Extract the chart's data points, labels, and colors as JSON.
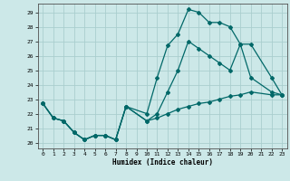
{
  "title": "",
  "xlabel": "Humidex (Indice chaleur)",
  "bg_color": "#cce8e8",
  "grid_color": "#aacece",
  "line_color": "#006868",
  "xlim": [
    -0.5,
    23.5
  ],
  "ylim": [
    19.6,
    29.6
  ],
  "xticks": [
    0,
    1,
    2,
    3,
    4,
    5,
    6,
    7,
    8,
    9,
    10,
    11,
    12,
    13,
    14,
    15,
    16,
    17,
    18,
    19,
    20,
    21,
    22,
    23
  ],
  "yticks": [
    20,
    21,
    22,
    23,
    24,
    25,
    26,
    27,
    28,
    29
  ],
  "line_top": {
    "x": [
      0,
      1,
      2,
      3,
      4,
      5,
      6,
      7,
      8,
      10,
      11,
      12,
      13,
      14,
      15,
      16,
      17,
      18,
      19,
      20,
      22,
      23
    ],
    "y": [
      22.7,
      21.7,
      21.5,
      20.7,
      20.2,
      20.5,
      20.5,
      20.2,
      22.5,
      22.0,
      24.5,
      26.7,
      27.5,
      29.2,
      29.0,
      28.3,
      28.3,
      28.0,
      26.8,
      24.5,
      23.5,
      23.3
    ]
  },
  "line_mid": {
    "x": [
      0,
      1,
      2,
      3,
      4,
      5,
      6,
      7,
      8,
      10,
      11,
      12,
      13,
      14,
      15,
      16,
      17,
      18,
      19,
      20,
      22,
      23
    ],
    "y": [
      22.7,
      21.7,
      21.5,
      20.7,
      20.2,
      20.5,
      20.5,
      20.2,
      22.5,
      21.5,
      22.0,
      23.5,
      25.0,
      27.0,
      26.5,
      26.0,
      25.5,
      25.0,
      26.8,
      26.8,
      24.5,
      23.3
    ]
  },
  "line_bot": {
    "x": [
      0,
      1,
      2,
      3,
      4,
      5,
      6,
      7,
      8,
      10,
      11,
      12,
      13,
      14,
      15,
      16,
      17,
      18,
      19,
      20,
      22,
      23
    ],
    "y": [
      22.7,
      21.7,
      21.5,
      20.7,
      20.2,
      20.5,
      20.5,
      20.2,
      22.5,
      21.5,
      21.7,
      22.0,
      22.3,
      22.5,
      22.7,
      22.8,
      23.0,
      23.2,
      23.3,
      23.5,
      23.3,
      23.3
    ]
  }
}
